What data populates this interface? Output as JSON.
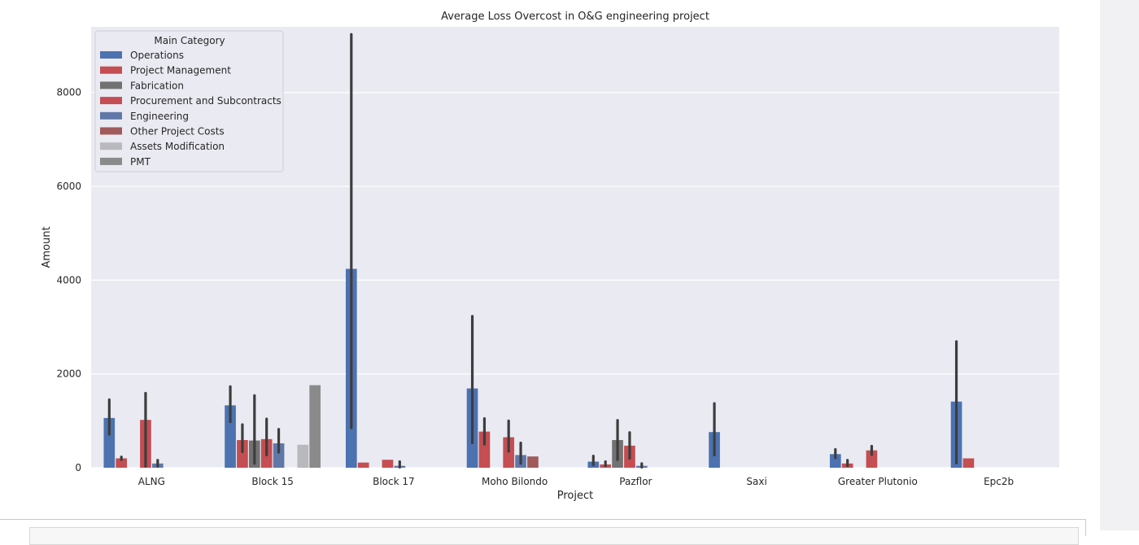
{
  "notebook": {
    "scrollbar": "vertical-scrollbar",
    "output_cell": "next-cell-input"
  },
  "chart_data": {
    "type": "bar",
    "title": "Average Loss Overcost in O&G engineering project",
    "xlabel": "Project",
    "ylabel": "Amount",
    "ylim": [
      0,
      9400
    ],
    "yticks": [
      0,
      2000,
      4000,
      6000,
      8000
    ],
    "grid": true,
    "legend_title": "Main Category",
    "legend_position": "top-left",
    "categories": [
      "ALNG",
      "Block 15",
      "Block 17",
      "Moho Bilondo",
      "Pazflor",
      "Saxi",
      "Greater Plutonio",
      "Epc2b"
    ],
    "series": [
      {
        "name": "Operations",
        "color": "#4c72b0",
        "values": [
          1060,
          1330,
          4240,
          1690,
          130,
          760,
          290,
          1410
        ],
        "err_low": [
          710,
          980,
          850,
          530,
          60,
          270,
          210,
          100
        ],
        "err_high": [
          1450,
          1730,
          9240,
          3230,
          250,
          1370,
          390,
          2690
        ]
      },
      {
        "name": "Project Management",
        "color": "#c44e52",
        "values": [
          200,
          590,
          110,
          770,
          70,
          null,
          90,
          200
        ],
        "err_low": [
          170,
          340,
          null,
          500,
          40,
          null,
          40,
          null
        ],
        "err_high": [
          230,
          920,
          null,
          1050,
          130,
          null,
          160,
          null
        ]
      },
      {
        "name": "Fabrication",
        "color": "#727272",
        "values": [
          null,
          580,
          null,
          null,
          590,
          null,
          null,
          null
        ],
        "err_low": [
          null,
          90,
          null,
          null,
          170,
          null,
          null,
          null
        ],
        "err_high": [
          null,
          1540,
          null,
          null,
          1010,
          null,
          null,
          null
        ]
      },
      {
        "name": "Procurement and Subcontracts",
        "color": "#c44e52",
        "values": [
          1020,
          610,
          170,
          650,
          470,
          null,
          370,
          null
        ],
        "err_low": [
          30,
          270,
          null,
          350,
          200,
          null,
          280,
          null
        ],
        "err_high": [
          1590,
          1040,
          null,
          1000,
          750,
          null,
          460,
          null
        ]
      },
      {
        "name": "Engineering",
        "color": "#6078a8",
        "values": [
          90,
          520,
          40,
          270,
          40,
          null,
          null,
          null
        ],
        "err_low": [
          30,
          330,
          10,
          90,
          10,
          null,
          null,
          null
        ],
        "err_high": [
          160,
          820,
          130,
          530,
          90,
          null,
          null,
          null
        ]
      },
      {
        "name": "Other Project Costs",
        "color": "#a05a5a",
        "values": [
          null,
          null,
          null,
          240,
          null,
          null,
          null,
          null
        ],
        "err_low": [
          null,
          null,
          null,
          null,
          null,
          null,
          null,
          null
        ],
        "err_high": [
          null,
          null,
          null,
          null,
          null,
          null,
          null,
          null
        ]
      },
      {
        "name": "Assets Modification",
        "color": "#b9b8bc",
        "values": [
          null,
          490,
          null,
          null,
          null,
          null,
          null,
          null
        ],
        "err_low": [
          null,
          null,
          null,
          null,
          null,
          null,
          null,
          null
        ],
        "err_high": [
          null,
          null,
          null,
          null,
          null,
          null,
          null,
          null
        ]
      },
      {
        "name": "PMT",
        "color": "#8a8a8a",
        "values": [
          null,
          1760,
          null,
          null,
          null,
          null,
          null,
          null
        ],
        "err_low": [
          null,
          null,
          null,
          null,
          null,
          null,
          null,
          null
        ],
        "err_high": [
          null,
          null,
          null,
          null,
          null,
          null,
          null,
          null
        ]
      }
    ]
  }
}
